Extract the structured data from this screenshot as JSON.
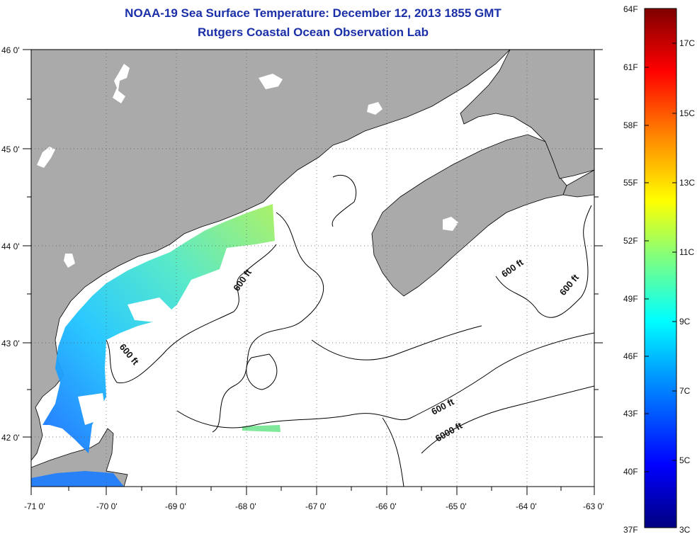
{
  "title": "NOAA-19 Sea Surface Temperature:  December 12, 2013 1855 GMT",
  "subtitle": "Rutgers Coastal Ocean Observation Lab",
  "lat_labels": [
    "46 0'",
    "45 0'",
    "44 0'",
    "43 0'",
    "42 0'"
  ],
  "lon_labels": [
    "-71 0'",
    "-70 0'",
    "-69 0'",
    "-68 0'",
    "-67 0'",
    "-66 0'",
    "-65 0'",
    "-64 0'",
    "-63 0'"
  ],
  "colorbar": {
    "fahrenheit": [
      "64F",
      "61F",
      "58F",
      "55F",
      "52F",
      "49F",
      "46F",
      "43F",
      "40F",
      "37F"
    ],
    "celsius": [
      "17C",
      "15C",
      "13C",
      "11C",
      "9C",
      "7C",
      "5C",
      "3C"
    ]
  },
  "contour_labels": [
    "600 ft",
    "600 ft",
    "600 ft",
    "600 ft",
    "600 ft",
    "6000 ft"
  ],
  "colors": {
    "title": "#1a2fa8",
    "land": "#aaaaaa",
    "water": "#ffffff"
  }
}
